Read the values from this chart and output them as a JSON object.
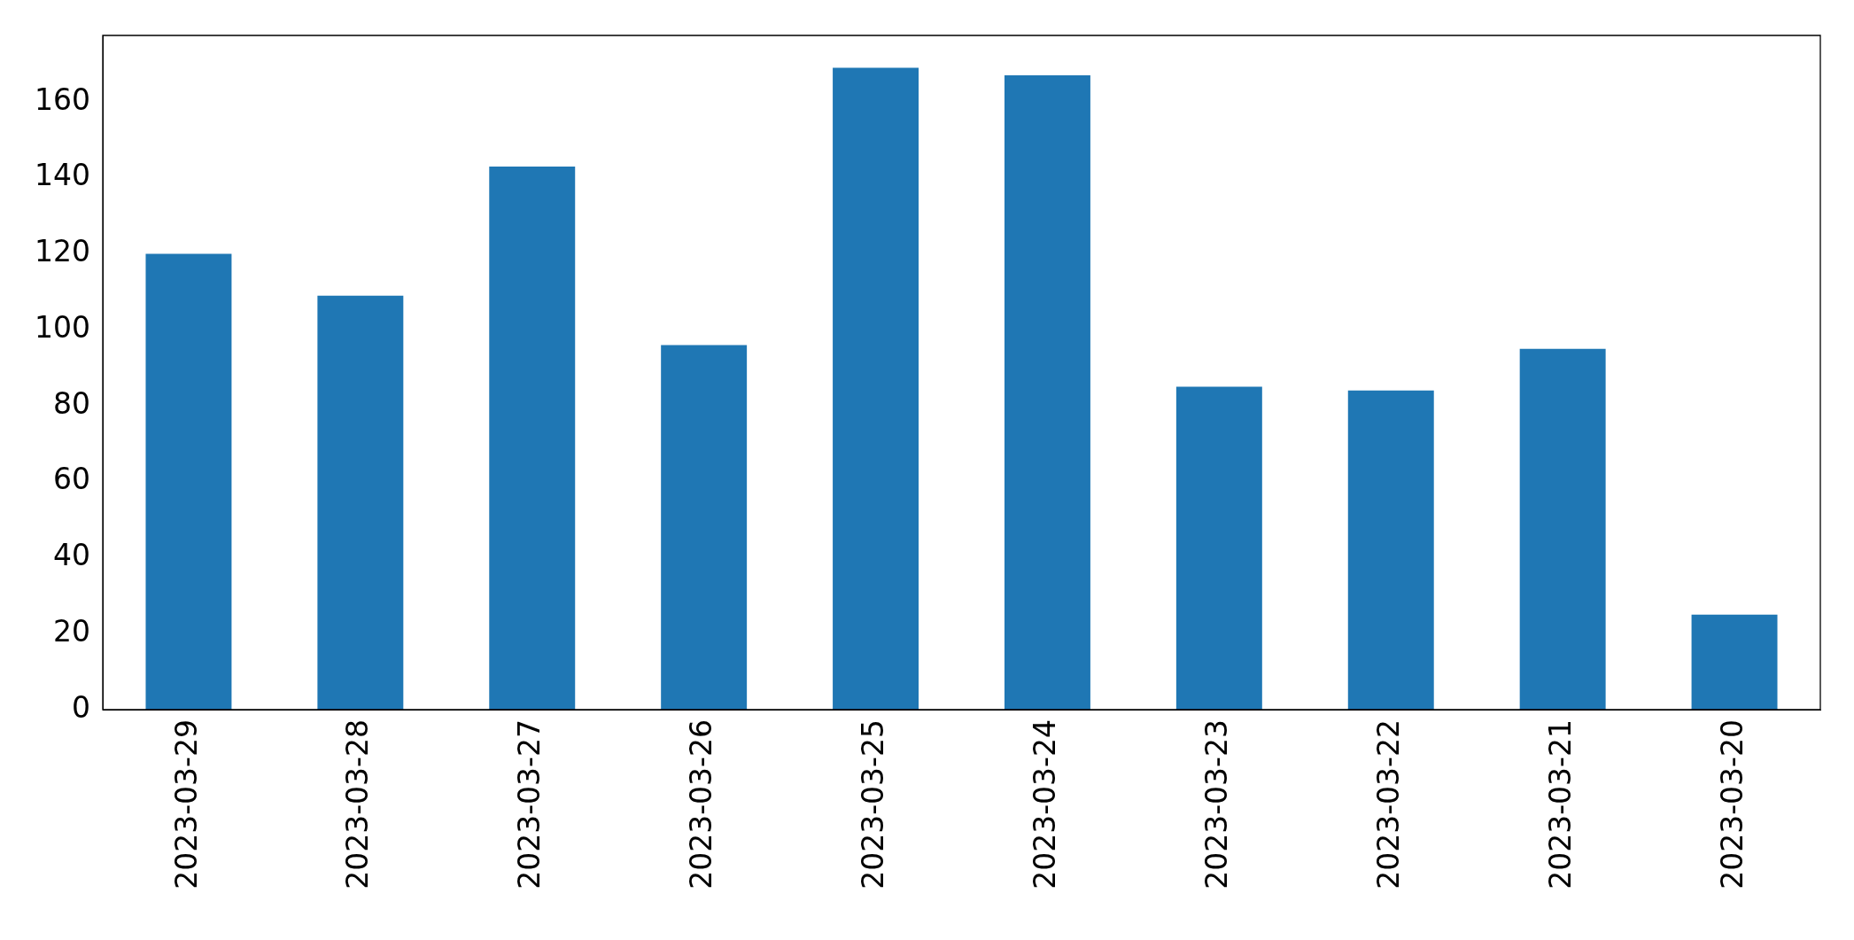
{
  "chart_data": {
    "type": "bar",
    "categories": [
      "2023-03-29",
      "2023-03-28",
      "2023-03-27",
      "2023-03-26",
      "2023-03-25",
      "2023-03-24",
      "2023-03-23",
      "2023-03-22",
      "2023-03-21",
      "2023-03-20"
    ],
    "values": [
      120,
      109,
      143,
      96,
      169,
      167,
      85,
      84,
      95,
      25
    ],
    "color": "#1f77b4",
    "ylim": [
      0,
      177.5
    ],
    "yticks": [
      0,
      20,
      40,
      60,
      80,
      100,
      120,
      140,
      160
    ],
    "grid": false,
    "legend": false
  }
}
